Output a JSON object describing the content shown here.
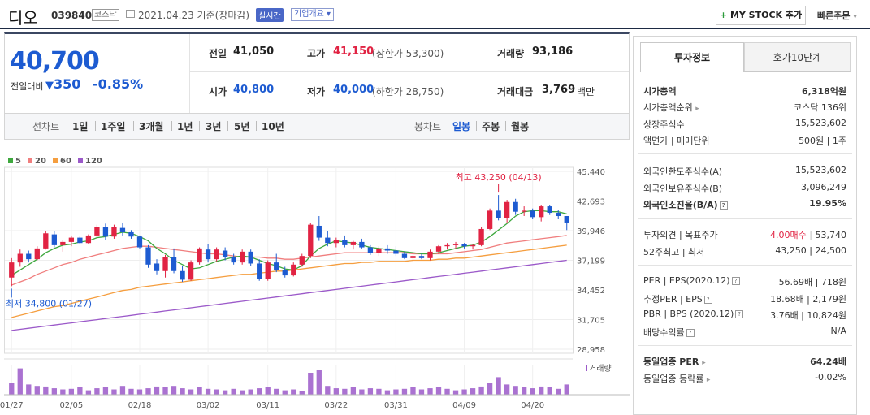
{
  "header": {
    "stock_name": "디오",
    "stock_code": "039840",
    "market": "코스닥",
    "date_text": "2021.04.23 기준(장마감)",
    "realtime_badge": "실시간",
    "company_overview": "기업개요",
    "my_stock_label": "MY STOCK 추가",
    "quick_order": "빠른주문"
  },
  "price": {
    "current": "40,700",
    "vs_label": "전일대비",
    "change": "350",
    "change_pct": "-0.85%",
    "prev_close_label": "전일",
    "prev_close": "41,050",
    "high_label": "고가",
    "high": "41,150",
    "upper_limit": "(상한가 53,300)",
    "volume_label": "거래량",
    "volume": "93,186",
    "open_label": "시가",
    "open": "40,800",
    "low_label": "저가",
    "low": "40,000",
    "lower_limit": "(하한가 28,750)",
    "amount_label": "거래대금",
    "amount": "3,769",
    "amount_unit": "백만"
  },
  "period_tabs": {
    "line_chart_label": "선차트",
    "line_periods": [
      "1일",
      "1주일",
      "3개월",
      "1년",
      "3년",
      "5년",
      "10년"
    ],
    "candle_label": "봉차트",
    "candle_periods": [
      "일봉",
      "주봉",
      "월봉"
    ]
  },
  "colors": {
    "up": "#e12343",
    "down": "#1d5bd1",
    "ma5": "#3ea83e",
    "ma20": "#f07e7e",
    "ma60": "#f59e3f",
    "ma120": "#9b59c9"
  },
  "chart_data": {
    "type": "candlestick",
    "legend": [
      "5",
      "20",
      "60",
      "120"
    ],
    "y_ticks": [
      "45,440",
      "42,693",
      "39,946",
      "37,199",
      "34,452",
      "31,705",
      "28,958"
    ],
    "ylim": [
      28958,
      45440
    ],
    "x_ticks": [
      "01/27",
      "02/05",
      "02/18",
      "03/02",
      "03/11",
      "03/22",
      "03/31",
      "04/09",
      "04/20"
    ],
    "max_annotation": "최고 43,250 (04/13)",
    "min_annotation": "최저 34,800 (01/27)",
    "volume_label": "거래량",
    "candles": [
      [
        35600,
        37400,
        34800,
        37000
      ],
      [
        37000,
        38200,
        36600,
        37800
      ],
      [
        37800,
        38100,
        37000,
        37300
      ],
      [
        37300,
        38500,
        37200,
        38300
      ],
      [
        38300,
        39900,
        38200,
        39700
      ],
      [
        39600,
        39900,
        38400,
        38600
      ],
      [
        38600,
        39100,
        38000,
        38900
      ],
      [
        38900,
        39500,
        38500,
        39300
      ],
      [
        39300,
        39400,
        38700,
        38800
      ],
      [
        38800,
        39600,
        38700,
        39500
      ],
      [
        39500,
        40500,
        39300,
        40300
      ],
      [
        40300,
        40600,
        39100,
        39400
      ],
      [
        39400,
        40500,
        39200,
        40300
      ],
      [
        40200,
        40700,
        39500,
        39800
      ],
      [
        39800,
        40000,
        39200,
        39400
      ],
      [
        39400,
        39500,
        38300,
        38400
      ],
      [
        38400,
        38600,
        36500,
        36800
      ],
      [
        36900,
        37300,
        35900,
        36200
      ],
      [
        36200,
        37700,
        35600,
        37500
      ],
      [
        37500,
        38300,
        36000,
        36200
      ],
      [
        36200,
        36700,
        35200,
        35400
      ],
      [
        35400,
        37200,
        35300,
        37000
      ],
      [
        37000,
        38400,
        36800,
        38300
      ],
      [
        38200,
        38700,
        37000,
        37300
      ],
      [
        37300,
        38400,
        37100,
        38200
      ],
      [
        38100,
        38400,
        37200,
        37500
      ],
      [
        37500,
        37800,
        36800,
        37000
      ],
      [
        37000,
        38200,
        36800,
        38000
      ],
      [
        38000,
        38200,
        36700,
        36900
      ],
      [
        36900,
        37300,
        35300,
        35500
      ],
      [
        35500,
        37200,
        35300,
        37000
      ],
      [
        37000,
        37800,
        36100,
        36300
      ],
      [
        36300,
        36600,
        35600,
        35800
      ],
      [
        35800,
        37000,
        35700,
        36800
      ],
      [
        36800,
        37800,
        36600,
        37600
      ],
      [
        37600,
        40700,
        37400,
        40500
      ],
      [
        40400,
        41300,
        39000,
        39300
      ],
      [
        39300,
        39900,
        38500,
        38800
      ],
      [
        38800,
        39300,
        38400,
        39100
      ],
      [
        39100,
        39500,
        38400,
        38600
      ],
      [
        38600,
        39000,
        38200,
        38900
      ],
      [
        38900,
        39200,
        38300,
        38400
      ],
      [
        38400,
        38600,
        37700,
        37900
      ],
      [
        37900,
        38500,
        37600,
        38300
      ],
      [
        38300,
        38600,
        37800,
        38100
      ],
      [
        38100,
        38500,
        37600,
        37800
      ],
      [
        37800,
        38000,
        37300,
        37400
      ],
      [
        37400,
        37700,
        37000,
        37600
      ],
      [
        37600,
        37800,
        37300,
        37400
      ],
      [
        37400,
        38200,
        37200,
        38000
      ],
      [
        38000,
        38600,
        37800,
        38500
      ],
      [
        38500,
        38800,
        38200,
        38600
      ],
      [
        38600,
        38900,
        38300,
        38700
      ],
      [
        38700,
        38800,
        38300,
        38500
      ],
      [
        38500,
        38700,
        38200,
        38600
      ],
      [
        38600,
        40300,
        38500,
        40100
      ],
      [
        40100,
        42000,
        40000,
        41800
      ],
      [
        41800,
        43250,
        40900,
        41100
      ],
      [
        41100,
        42800,
        40700,
        42600
      ],
      [
        42600,
        42900,
        41400,
        41700
      ],
      [
        41700,
        42200,
        41300,
        41800
      ],
      [
        41800,
        42000,
        41000,
        41200
      ],
      [
        41200,
        42300,
        40800,
        42200
      ],
      [
        42200,
        42300,
        41400,
        41600
      ],
      [
        41600,
        41900,
        41000,
        41300
      ],
      [
        41300,
        41300,
        40000,
        40700
      ]
    ],
    "volumes": [
      40,
      90,
      35,
      30,
      28,
      22,
      18,
      20,
      25,
      15,
      22,
      25,
      18,
      30,
      20,
      18,
      22,
      28,
      25,
      30,
      22,
      18,
      25,
      20,
      18,
      15,
      20,
      15,
      18,
      22,
      25,
      20,
      15,
      18,
      12,
      75,
      85,
      30,
      22,
      20,
      25,
      18,
      22,
      20,
      15,
      18,
      20,
      25,
      18,
      22,
      25,
      20,
      15,
      18,
      22,
      28,
      40,
      60,
      35,
      30,
      25,
      22,
      28,
      25,
      20,
      35
    ],
    "ma5": [
      35800,
      36300,
      36800,
      37300,
      37900,
      38300,
      38600,
      38700,
      38900,
      39000,
      39300,
      39400,
      39600,
      39800,
      39700,
      39400,
      39000,
      38300,
      37800,
      37200,
      36800,
      36400,
      36500,
      36800,
      37100,
      37300,
      37500,
      37600,
      37500,
      37200,
      36900,
      36700,
      36400,
      36300,
      36700,
      37600,
      38300,
      38700,
      39000,
      38900,
      38800,
      38600,
      38400,
      38300,
      38200,
      38100,
      38000,
      37900,
      37800,
      37800,
      37900,
      38100,
      38300,
      38500,
      38600,
      38900,
      39400,
      40000,
      40600,
      41300,
      41700,
      41800,
      41800,
      41700,
      41700,
      41500
    ],
    "ma20": [
      34900,
      35200,
      35500,
      35900,
      36200,
      36500,
      36800,
      37000,
      37300,
      37500,
      37700,
      37900,
      38100,
      38300,
      38400,
      38500,
      38500,
      38400,
      38300,
      38200,
      38100,
      38000,
      37900,
      37800,
      37800,
      37700,
      37600,
      37500,
      37500,
      37500,
      37400,
      37400,
      37300,
      37300,
      37400,
      37500,
      37600,
      37700,
      37800,
      37900,
      37900,
      37900,
      37900,
      37900,
      37900,
      37900,
      37900,
      37800,
      37800,
      37800,
      37800,
      37800,
      37900,
      38000,
      38100,
      38200,
      38400,
      38600,
      38800,
      38900,
      39000,
      39100,
      39200,
      39300,
      39400,
      39500
    ],
    "ma60": [
      31900,
      32100,
      32300,
      32500,
      32700,
      32900,
      33000,
      33200,
      33400,
      33600,
      33800,
      34000,
      34200,
      34400,
      34500,
      34700,
      34800,
      34900,
      35000,
      35100,
      35200,
      35300,
      35400,
      35500,
      35600,
      35700,
      35800,
      35900,
      35900,
      36000,
      36100,
      36200,
      36200,
      36300,
      36400,
      36500,
      36600,
      36700,
      36800,
      36900,
      36900,
      37000,
      37000,
      37100,
      37100,
      37100,
      37100,
      37200,
      37200,
      37200,
      37300,
      37300,
      37400,
      37400,
      37500,
      37600,
      37700,
      37800,
      37900,
      38000,
      38100,
      38200,
      38300,
      38400,
      38500,
      38600
    ],
    "ma120": [
      30700,
      30800,
      30900,
      31000,
      31100,
      31200,
      31300,
      31400,
      31500,
      31600,
      31700,
      31800,
      31900,
      32000,
      32100,
      32200,
      32300,
      32400,
      32500,
      32600,
      32700,
      32800,
      32900,
      33000,
      33100,
      33200,
      33300,
      33400,
      33500,
      33600,
      33700,
      33800,
      33900,
      34000,
      34100,
      34200,
      34300,
      34400,
      34500,
      34600,
      34700,
      34800,
      34900,
      35000,
      35100,
      35200,
      35300,
      35400,
      35500,
      35600,
      35700,
      35800,
      35900,
      36000,
      36100,
      36200,
      36300,
      36400,
      36500,
      36600,
      36700,
      36800,
      36900,
      37000,
      37100,
      37200
    ]
  },
  "invest_info": {
    "tab_active": "투자정보",
    "tab_other": "호가10단계",
    "section1": [
      {
        "label": "시가총액",
        "value": "6,318억원"
      },
      {
        "label": "시가총액순위",
        "value": "코스닥 136위"
      },
      {
        "label": "상장주식수",
        "value": "15,523,602"
      },
      {
        "label": "액면가 | 매매단위",
        "value": "500원 | 1주"
      }
    ],
    "section2": [
      {
        "label": "외국인한도주식수(A)",
        "value": "15,523,602"
      },
      {
        "label": "외국인보유주식수(B)",
        "value": "3,096,249"
      },
      {
        "label": "외국인소진율(B/A)",
        "value": "19.95%"
      }
    ],
    "section3": [
      {
        "label": "투자의견 | 목표주가",
        "value_red": "4.00매수",
        "value": "53,740"
      },
      {
        "label": "52주최고 | 최저",
        "value": "43,250 | 24,500"
      }
    ],
    "section4": [
      {
        "label": "PER | EPS(2020.12)",
        "value": "56.69배 | 718원"
      },
      {
        "label": "추정PER | EPS",
        "value": "18.68배 | 2,179원"
      },
      {
        "label": "PBR | BPS (2020.12)",
        "value": "3.76배 | 10,824원"
      },
      {
        "label": "배당수익률",
        "value": "N/A"
      }
    ],
    "section5": [
      {
        "label": "동일업종 PER",
        "value": "64.24배"
      },
      {
        "label": "동일업종 등락률",
        "value": "-0.02%"
      }
    ]
  }
}
